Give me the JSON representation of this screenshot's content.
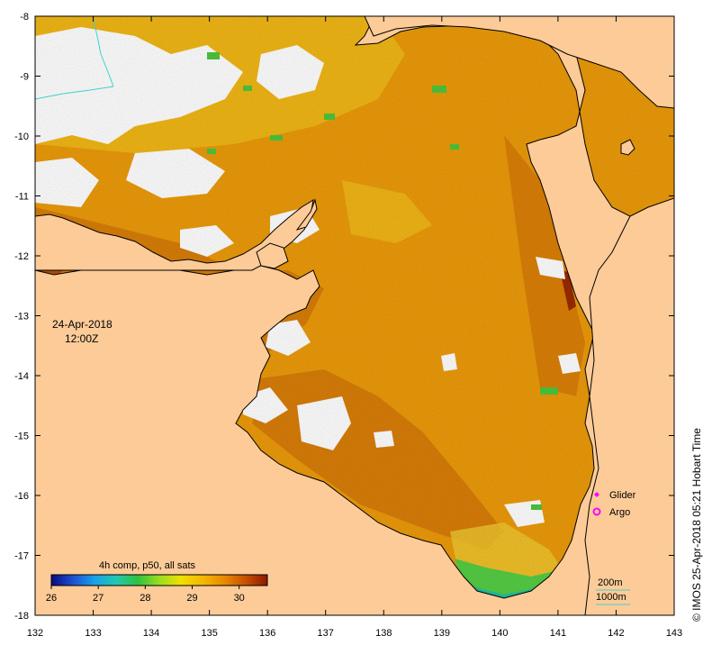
{
  "map": {
    "date": "24-Apr-2018",
    "time": "12:00Z",
    "composite_label": "4h comp, p50, all sats",
    "credit": "© IMOS 25-Apr-2018 05:21 Hobart Time",
    "x_ticks": [
      "132",
      "133",
      "134",
      "135",
      "136",
      "137",
      "138",
      "139",
      "140",
      "141",
      "142",
      "143"
    ],
    "y_ticks": [
      "-8",
      "-9",
      "-10",
      "-11",
      "-12",
      "-13",
      "-14",
      "-15",
      "-16",
      "-17",
      "-18"
    ],
    "colorbar": {
      "tick_labels": [
        "26",
        "27",
        "28",
        "29",
        "30"
      ],
      "range": [
        26,
        30.6
      ],
      "colors": [
        "#0a0a80",
        "#1e4fd0",
        "#1aa0e8",
        "#22c8b0",
        "#30c040",
        "#9ade20",
        "#f0e000",
        "#f5b800",
        "#e88a00",
        "#c85000",
        "#8b1a00"
      ]
    },
    "legend": {
      "glider_label": "Glider",
      "argo_label": "Argo",
      "glider_color": "#ff00ff",
      "argo_color": "#ff00ff"
    },
    "scale": {
      "isobath_200": "200m",
      "isobath_1000": "1000m",
      "isobath_color": "#40d0d0"
    },
    "colors": {
      "land": "#fccb98",
      "nodata": "#ffffff",
      "sst_base": "#eb9a0a",
      "sst_warm": "#cc6a06",
      "sst_cool": "#f2c21a",
      "sst_cold": "#55cc44"
    }
  }
}
